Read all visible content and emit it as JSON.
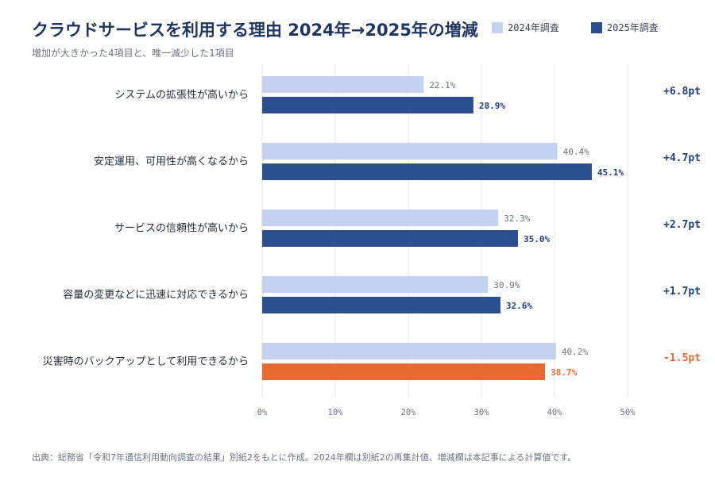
{
  "colors": {
    "series_2024": "#c3d3ef",
    "series_2025": "#2d4f8e",
    "decrease": "#e86a33",
    "increase_text": "#1f3f7a",
    "grid": "#e5e7eb"
  },
  "chart_data": {
    "type": "bar",
    "orientation": "horizontal",
    "title": "クラウドサービスを利用する理由 2024年→2025年の増減",
    "subtitle": "増加が大きかった4項目と、唯一減少した1項目",
    "categories": [
      "システムの拡張性が高いから",
      "安定運用、可用性が高くなるから",
      "サービスの信頼性が高いから",
      "容量の変更などに迅速に対応できるから",
      "災害時のバックアップとして利用できるから"
    ],
    "series": [
      {
        "name": "2024年調査",
        "values": [
          22.1,
          40.4,
          32.3,
          30.9,
          40.2
        ]
      },
      {
        "name": "2025年調査",
        "values": [
          28.9,
          45.1,
          35.0,
          32.6,
          38.7
        ]
      }
    ],
    "value_labels_2024": [
      "22.1%",
      "40.4%",
      "32.3%",
      "30.9%",
      "40.2%"
    ],
    "value_labels_2025": [
      "28.9%",
      "45.1%",
      "35.0%",
      "32.6%",
      "38.7%"
    ],
    "changes": [
      6.8,
      4.7,
      2.7,
      1.7,
      -1.5
    ],
    "change_labels": [
      "+6.8pt",
      "+4.7pt",
      "+2.7pt",
      "+1.7pt",
      "-1.5pt"
    ],
    "xlim": [
      0,
      50
    ],
    "xticks": [
      0,
      10,
      20,
      30,
      40,
      50
    ],
    "xtick_labels": [
      "0%",
      "10%",
      "20%",
      "30%",
      "40%",
      "50%"
    ],
    "grid": true,
    "legend_position": "top-right"
  },
  "footer": {
    "source": "出典：総務省「令和7年通信利用動向調査の結果」別紙2をもとに作成。2024年欄は別紙2の再集計値、増減欄は本記事による計算値です。"
  }
}
